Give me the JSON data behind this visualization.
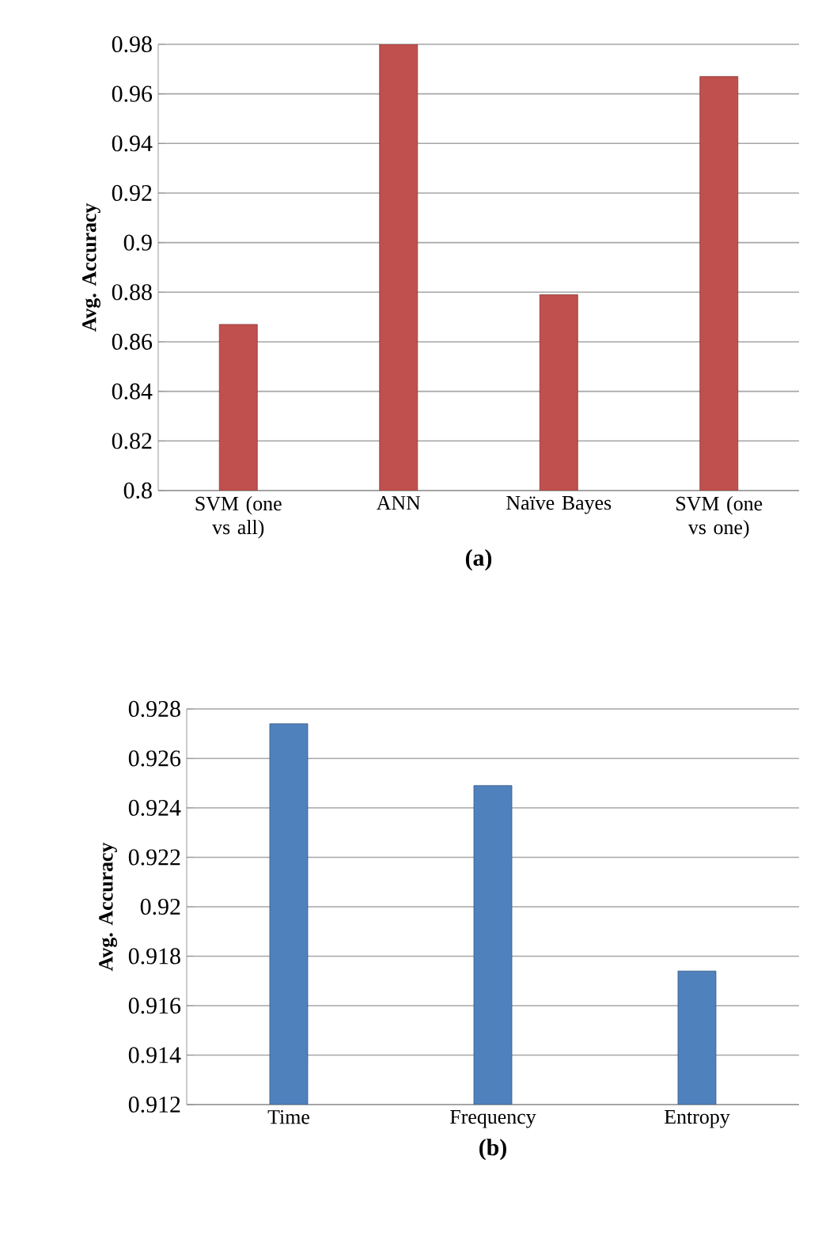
{
  "chart_data": [
    {
      "type": "bar",
      "xlabel": "(a)",
      "ylabel": "Avg. Accuracy",
      "categories": [
        "SVM (one vs all)",
        "ANN",
        "Naïve Bayes",
        "SVM (one vs one)"
      ],
      "values": [
        0.867,
        0.98,
        0.879,
        0.967
      ],
      "color": "#c0504d",
      "ylim": [
        0.8,
        0.98
      ],
      "yticks": [
        0.8,
        0.82,
        0.84,
        0.86,
        0.88,
        0.9,
        0.92,
        0.94,
        0.96,
        0.98
      ],
      "grid": "y"
    },
    {
      "type": "bar",
      "xlabel": "(b)",
      "ylabel": "Avg. Accuracy",
      "categories": [
        "Time",
        "Frequency",
        "Entropy"
      ],
      "values": [
        0.9274,
        0.9249,
        0.9174
      ],
      "color": "#4f81bd",
      "ylim": [
        0.912,
        0.928
      ],
      "yticks": [
        0.912,
        0.914,
        0.916,
        0.918,
        0.92,
        0.922,
        0.924,
        0.926,
        0.928
      ],
      "grid": "y"
    }
  ]
}
